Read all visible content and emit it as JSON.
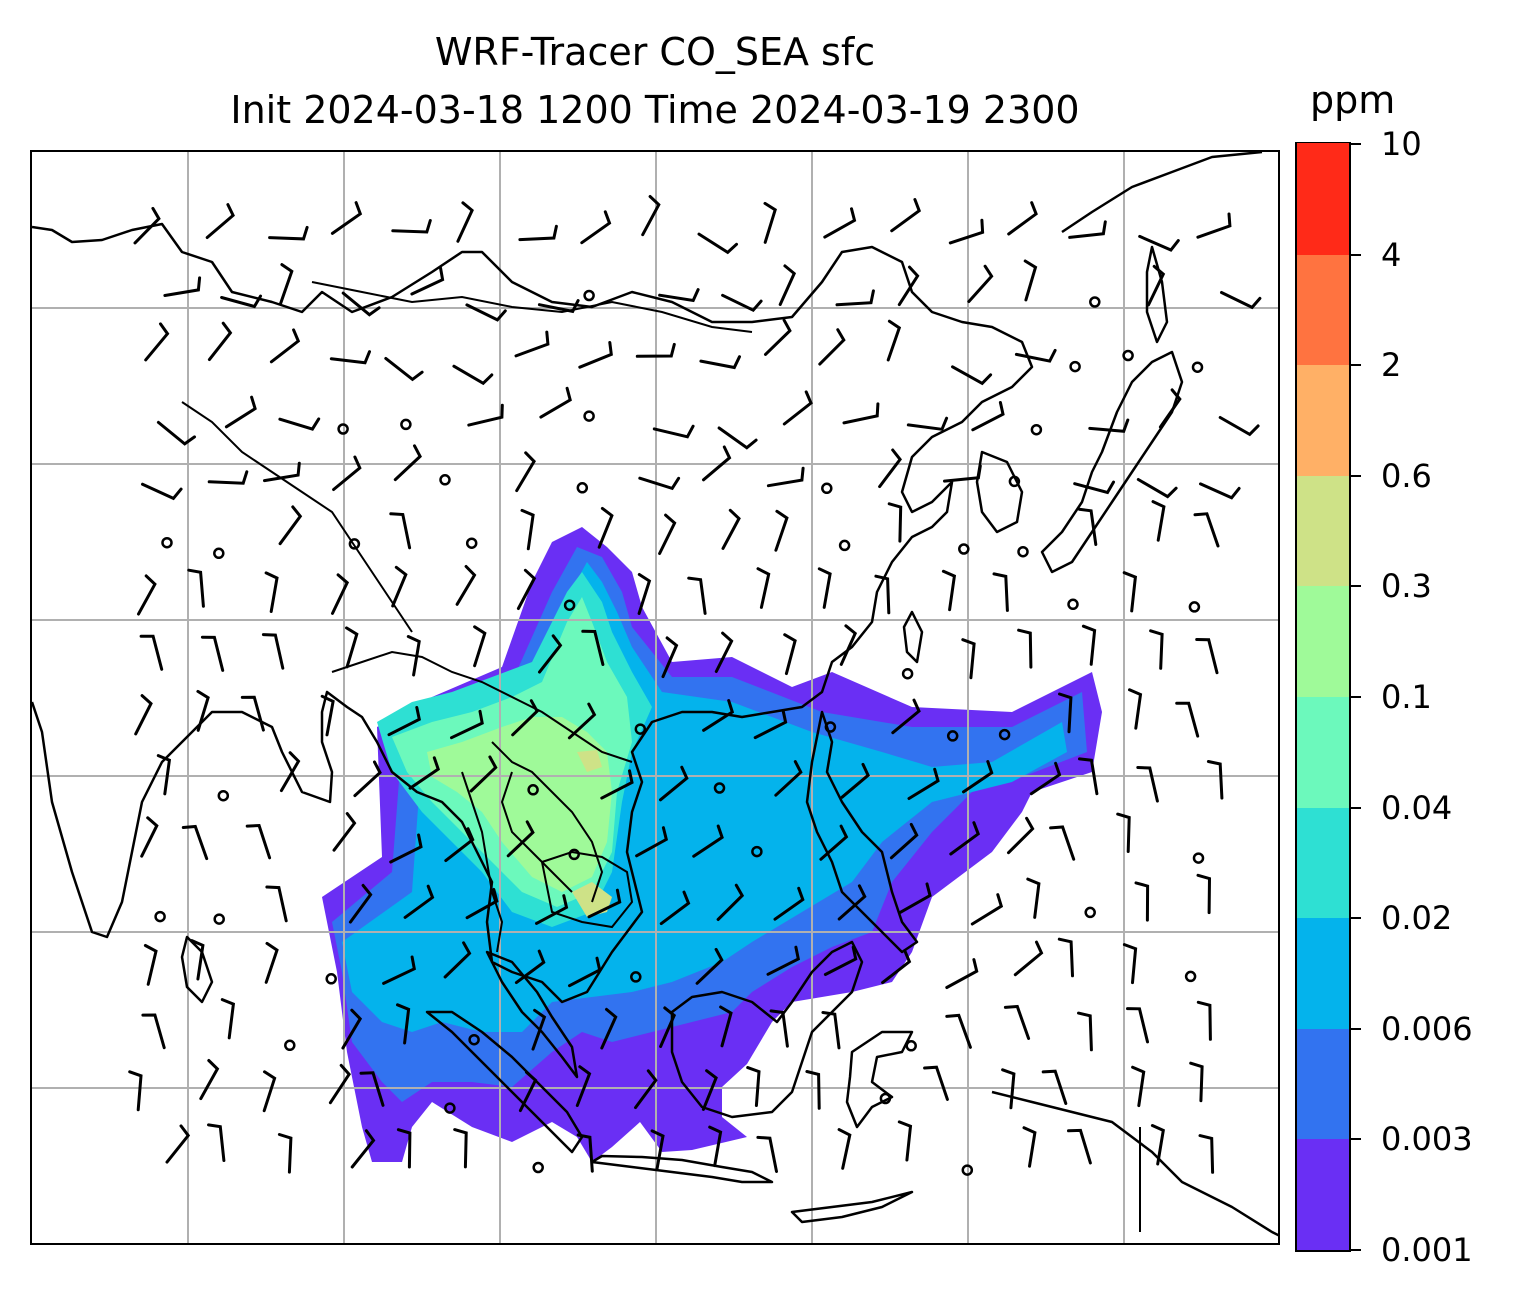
{
  "title": {
    "line1": "WRF-Tracer CO_SEA sfc",
    "line2": "Init 2024-03-18 1200 Time 2024-03-19 2300"
  },
  "colorbar": {
    "unit": "ppm",
    "levels": [
      "0.001",
      "0.003",
      "0.006",
      "0.02",
      "0.04",
      "0.1",
      "0.3",
      "0.6",
      "2",
      "4",
      "10"
    ],
    "colors": [
      "#6a2ff4",
      "#3273f0",
      "#04b3ec",
      "#2ee0d3",
      "#6cf9bc",
      "#9ffa99",
      "#cee287",
      "#ffb066",
      "#ff7340",
      "#ff2a18"
    ]
  },
  "map": {
    "variable": "CO_SEA",
    "region": "East and Southeast Asia",
    "gridlines": true,
    "overlays": [
      "coastlines",
      "country borders",
      "wind barbs",
      "calm-wind circles"
    ]
  }
}
